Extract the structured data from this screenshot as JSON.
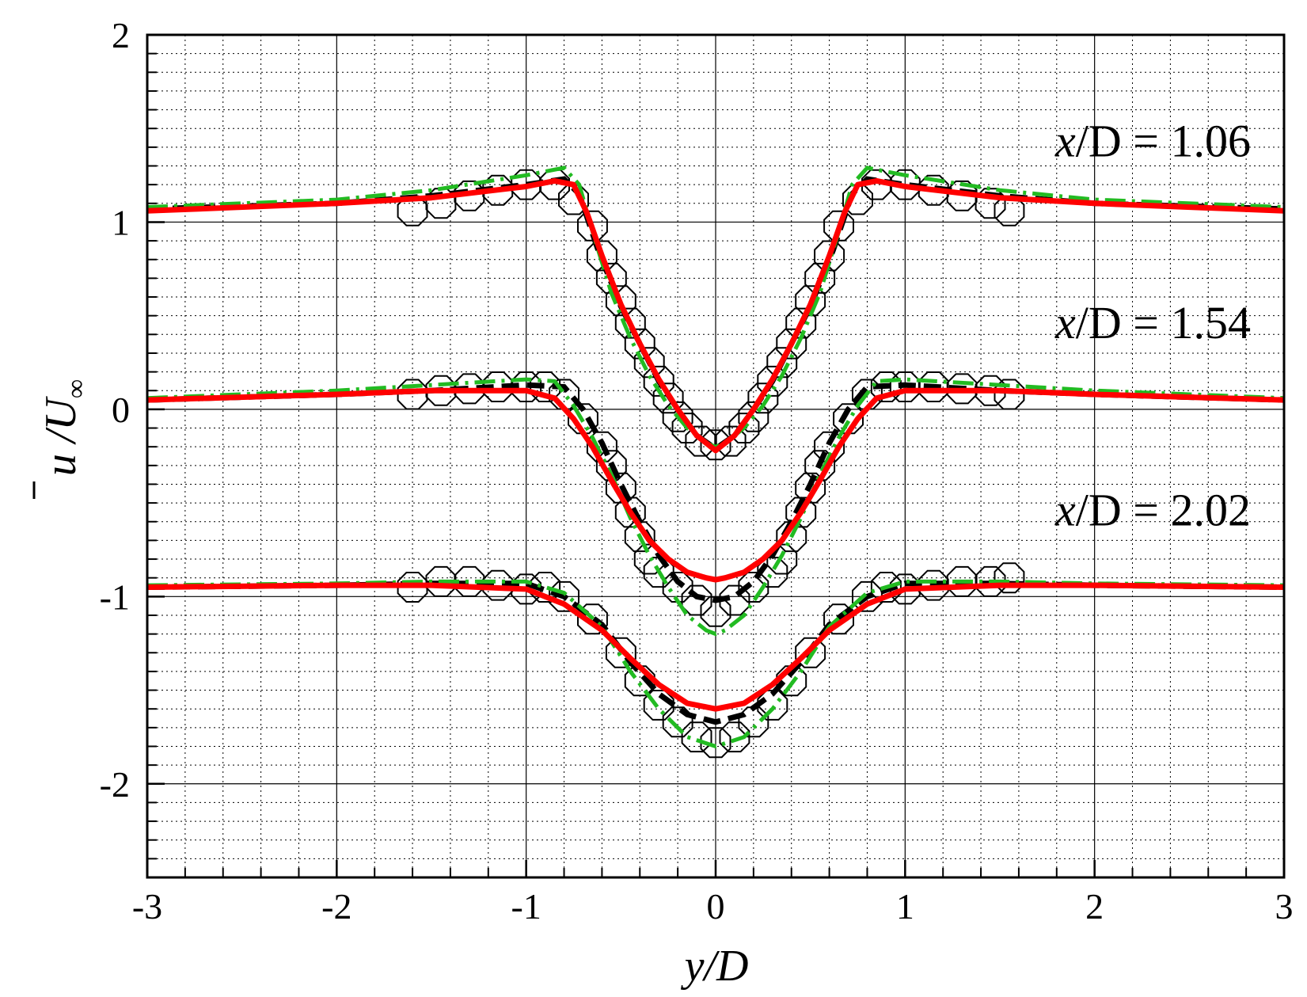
{
  "chart_data": {
    "type": "line",
    "xlabel": "y/D",
    "ylabel": "u /U",
    "ylabel_sub": "∞",
    "xlim": [
      -3,
      3
    ],
    "ylim": [
      -2.5,
      2
    ],
    "x_ticks": [
      -3,
      -2,
      -1,
      0,
      1,
      2,
      3
    ],
    "x_tick_labels": [
      "-3",
      "-2",
      "-1",
      "0",
      "1",
      "2",
      "3"
    ],
    "y_ticks": [
      -2,
      -1,
      0,
      1,
      2
    ],
    "y_tick_labels": [
      "-2",
      "-1",
      "0",
      "1",
      "2"
    ],
    "grid": true,
    "colors": {
      "experiment": "#000000",
      "black_dashed": "#000000",
      "green_dashdot": "#22bb22",
      "red_solid": "#ff0000"
    },
    "annotations": [
      {
        "text": "x/D = 1.06",
        "italic_part": "x",
        "rest": "/D = 1.06",
        "anchor_y": 1.35
      },
      {
        "text": "x/D = 1.54",
        "italic_part": "x",
        "rest": "/D = 1.54",
        "anchor_y": 0.38
      },
      {
        "text": "x/D = 2.02",
        "italic_part": "x",
        "rest": "/D = 2.02",
        "anchor_y": -0.62
      }
    ],
    "profiles": [
      {
        "station": "x/D = 1.06",
        "offset": 1,
        "experiment": {
          "x": [
            -1.6,
            -1.45,
            -1.3,
            -1.15,
            -1.0,
            -0.85,
            -0.75,
            -0.65,
            -0.6,
            -0.55,
            -0.5,
            -0.45,
            -0.4,
            -0.35,
            -0.3,
            -0.25,
            -0.2,
            -0.15,
            -0.08,
            0.0,
            0.08,
            0.15,
            0.2,
            0.25,
            0.3,
            0.35,
            0.4,
            0.45,
            0.5,
            0.55,
            0.6,
            0.65,
            0.75,
            0.85,
            1.0,
            1.15,
            1.3,
            1.45,
            1.55
          ],
          "y": [
            1.06,
            1.1,
            1.14,
            1.17,
            1.2,
            1.2,
            1.12,
            0.98,
            0.82,
            0.7,
            0.58,
            0.46,
            0.35,
            0.25,
            0.15,
            0.06,
            -0.04,
            -0.1,
            -0.17,
            -0.19,
            -0.17,
            -0.1,
            -0.04,
            0.06,
            0.15,
            0.25,
            0.35,
            0.46,
            0.58,
            0.7,
            0.82,
            0.98,
            1.12,
            1.2,
            1.2,
            1.17,
            1.14,
            1.1,
            1.06
          ]
        },
        "black_dashed": {
          "x": [
            -3.0,
            -2.0,
            -1.5,
            -1.0,
            -0.8,
            -0.72,
            -0.62,
            -0.5,
            -0.4,
            -0.3,
            -0.2,
            -0.1,
            0.0,
            0.1,
            0.2,
            0.3,
            0.4,
            0.5,
            0.62,
            0.72,
            0.8,
            1.0,
            1.5,
            2.0,
            3.0
          ],
          "y": [
            1.07,
            1.1,
            1.14,
            1.2,
            1.23,
            1.15,
            0.85,
            0.55,
            0.35,
            0.15,
            0.0,
            -0.14,
            -0.21,
            -0.14,
            0.0,
            0.15,
            0.35,
            0.55,
            0.85,
            1.15,
            1.23,
            1.2,
            1.14,
            1.1,
            1.07
          ]
        },
        "green_dashdot": {
          "x": [
            -3.0,
            -2.0,
            -1.5,
            -1.0,
            -0.8,
            -0.72,
            -0.65,
            -0.55,
            -0.45,
            -0.35,
            -0.25,
            -0.15,
            -0.05,
            0.0,
            0.05,
            0.15,
            0.25,
            0.35,
            0.45,
            0.55,
            0.65,
            0.72,
            0.8,
            1.0,
            1.5,
            2.0,
            3.0
          ],
          "y": [
            1.08,
            1.12,
            1.17,
            1.25,
            1.29,
            1.2,
            0.95,
            0.62,
            0.38,
            0.18,
            0.02,
            -0.1,
            -0.18,
            -0.2,
            -0.18,
            -0.1,
            0.02,
            0.18,
            0.38,
            0.62,
            0.95,
            1.2,
            1.29,
            1.25,
            1.17,
            1.12,
            1.08
          ]
        },
        "red_solid": {
          "x": [
            -3.0,
            -2.0,
            -1.5,
            -1.0,
            -0.85,
            -0.75,
            -0.68,
            -0.6,
            -0.5,
            -0.4,
            -0.3,
            -0.2,
            -0.1,
            0.0,
            0.1,
            0.2,
            0.3,
            0.4,
            0.5,
            0.6,
            0.68,
            0.75,
            0.85,
            1.0,
            1.5,
            2.0,
            3.0
          ],
          "y": [
            1.06,
            1.1,
            1.13,
            1.19,
            1.22,
            1.2,
            1.05,
            0.82,
            0.56,
            0.35,
            0.16,
            0.0,
            -0.14,
            -0.22,
            -0.14,
            0.0,
            0.16,
            0.35,
            0.56,
            0.82,
            1.05,
            1.2,
            1.22,
            1.19,
            1.13,
            1.1,
            1.06
          ]
        }
      },
      {
        "station": "x/D = 1.54",
        "offset": 0,
        "experiment": {
          "x": [
            -1.6,
            -1.45,
            -1.3,
            -1.15,
            -1.0,
            -0.9,
            -0.8,
            -0.7,
            -0.6,
            -0.55,
            -0.5,
            -0.45,
            -0.4,
            -0.35,
            -0.3,
            -0.2,
            -0.1,
            0.0,
            0.1,
            0.2,
            0.3,
            0.35,
            0.4,
            0.45,
            0.5,
            0.55,
            0.6,
            0.7,
            0.8,
            0.9,
            1.0,
            1.15,
            1.3,
            1.45,
            1.55
          ],
          "y": [
            0.08,
            0.1,
            0.11,
            0.12,
            0.12,
            0.12,
            0.08,
            -0.05,
            -0.2,
            -0.3,
            -0.42,
            -0.55,
            -0.68,
            -0.8,
            -0.87,
            -0.95,
            -1.02,
            -1.08,
            -1.02,
            -0.95,
            -0.87,
            -0.8,
            -0.68,
            -0.55,
            -0.42,
            -0.3,
            -0.2,
            -0.05,
            0.08,
            0.12,
            0.12,
            0.12,
            0.11,
            0.1,
            0.08
          ]
        },
        "black_dashed": {
          "x": [
            -3.0,
            -2.0,
            -1.5,
            -1.0,
            -0.8,
            -0.7,
            -0.6,
            -0.5,
            -0.4,
            -0.3,
            -0.2,
            -0.1,
            0.0,
            0.1,
            0.2,
            0.3,
            0.4,
            0.5,
            0.6,
            0.7,
            0.8,
            1.0,
            1.5,
            2.0,
            3.0
          ],
          "y": [
            0.05,
            0.08,
            0.1,
            0.13,
            0.12,
            0.0,
            -0.18,
            -0.4,
            -0.6,
            -0.78,
            -0.92,
            -1.0,
            -1.02,
            -1.0,
            -0.92,
            -0.78,
            -0.6,
            -0.4,
            -0.18,
            0.0,
            0.12,
            0.13,
            0.1,
            0.08,
            0.05
          ]
        },
        "green_dashdot": {
          "x": [
            -3.0,
            -2.0,
            -1.5,
            -1.0,
            -0.85,
            -0.75,
            -0.65,
            -0.55,
            -0.45,
            -0.35,
            -0.25,
            -0.15,
            -0.05,
            0.0,
            0.05,
            0.15,
            0.25,
            0.35,
            0.45,
            0.55,
            0.65,
            0.75,
            0.85,
            1.0,
            1.5,
            2.0,
            3.0
          ],
          "y": [
            0.06,
            0.1,
            0.13,
            0.16,
            0.15,
            0.02,
            -0.15,
            -0.35,
            -0.58,
            -0.78,
            -0.95,
            -1.1,
            -1.18,
            -1.2,
            -1.18,
            -1.1,
            -0.95,
            -0.78,
            -0.58,
            -0.35,
            -0.15,
            0.02,
            0.15,
            0.16,
            0.13,
            0.1,
            0.06
          ]
        },
        "red_solid": {
          "x": [
            -3.0,
            -2.0,
            -1.5,
            -1.0,
            -0.85,
            -0.75,
            -0.65,
            -0.55,
            -0.45,
            -0.35,
            -0.25,
            -0.15,
            -0.05,
            0.0,
            0.05,
            0.15,
            0.25,
            0.35,
            0.45,
            0.55,
            0.65,
            0.75,
            0.85,
            1.0,
            1.5,
            2.0,
            3.0
          ],
          "y": [
            0.05,
            0.08,
            0.1,
            0.1,
            0.06,
            -0.05,
            -0.2,
            -0.38,
            -0.55,
            -0.7,
            -0.8,
            -0.87,
            -0.9,
            -0.91,
            -0.9,
            -0.87,
            -0.8,
            -0.7,
            -0.55,
            -0.38,
            -0.2,
            -0.05,
            0.06,
            0.1,
            0.1,
            0.08,
            0.05
          ]
        }
      },
      {
        "station": "x/D = 2.02",
        "offset": -1,
        "experiment": {
          "x": [
            -1.6,
            -1.45,
            -1.3,
            -1.15,
            -1.0,
            -0.9,
            -0.8,
            -0.65,
            -0.5,
            -0.4,
            -0.3,
            -0.2,
            -0.1,
            0.0,
            0.1,
            0.2,
            0.3,
            0.4,
            0.5,
            0.65,
            0.8,
            0.9,
            1.0,
            1.15,
            1.3,
            1.45,
            1.55
          ],
          "y": [
            -0.95,
            -0.92,
            -0.92,
            -0.94,
            -0.96,
            -0.95,
            -1.0,
            -1.12,
            -1.3,
            -1.45,
            -1.58,
            -1.67,
            -1.75,
            -1.78,
            -1.75,
            -1.67,
            -1.58,
            -1.45,
            -1.3,
            -1.12,
            -1.0,
            -0.95,
            -0.96,
            -0.94,
            -0.92,
            -0.92,
            -0.9
          ]
        },
        "black_dashed": {
          "x": [
            -3.0,
            -2.0,
            -1.5,
            -1.0,
            -0.8,
            -0.6,
            -0.45,
            -0.3,
            -0.15,
            0.0,
            0.15,
            0.3,
            0.45,
            0.6,
            0.8,
            1.0,
            1.5,
            2.0,
            3.0
          ],
          "y": [
            -0.95,
            -0.94,
            -0.93,
            -0.93,
            -1.0,
            -1.15,
            -1.35,
            -1.52,
            -1.63,
            -1.67,
            -1.63,
            -1.52,
            -1.35,
            -1.15,
            -1.0,
            -0.93,
            -0.93,
            -0.94,
            -0.95
          ]
        },
        "green_dashdot": {
          "x": [
            -3.0,
            -2.0,
            -1.5,
            -1.0,
            -0.8,
            -0.6,
            -0.45,
            -0.3,
            -0.15,
            0.0,
            0.15,
            0.3,
            0.45,
            0.6,
            0.8,
            1.0,
            1.5,
            2.0,
            3.0
          ],
          "y": [
            -0.94,
            -0.93,
            -0.92,
            -0.92,
            -0.98,
            -1.16,
            -1.4,
            -1.6,
            -1.75,
            -1.8,
            -1.75,
            -1.6,
            -1.4,
            -1.16,
            -0.98,
            -0.92,
            -0.92,
            -0.93,
            -0.94
          ]
        },
        "red_solid": {
          "x": [
            -3.0,
            -2.0,
            -1.5,
            -1.0,
            -0.8,
            -0.6,
            -0.45,
            -0.3,
            -0.15,
            0.0,
            0.15,
            0.3,
            0.45,
            0.6,
            0.8,
            1.0,
            1.5,
            2.0,
            3.0
          ],
          "y": [
            -0.95,
            -0.94,
            -0.94,
            -0.96,
            -1.04,
            -1.18,
            -1.33,
            -1.47,
            -1.57,
            -1.6,
            -1.57,
            -1.47,
            -1.33,
            -1.18,
            -1.04,
            -0.96,
            -0.94,
            -0.94,
            -0.95
          ]
        }
      }
    ]
  }
}
